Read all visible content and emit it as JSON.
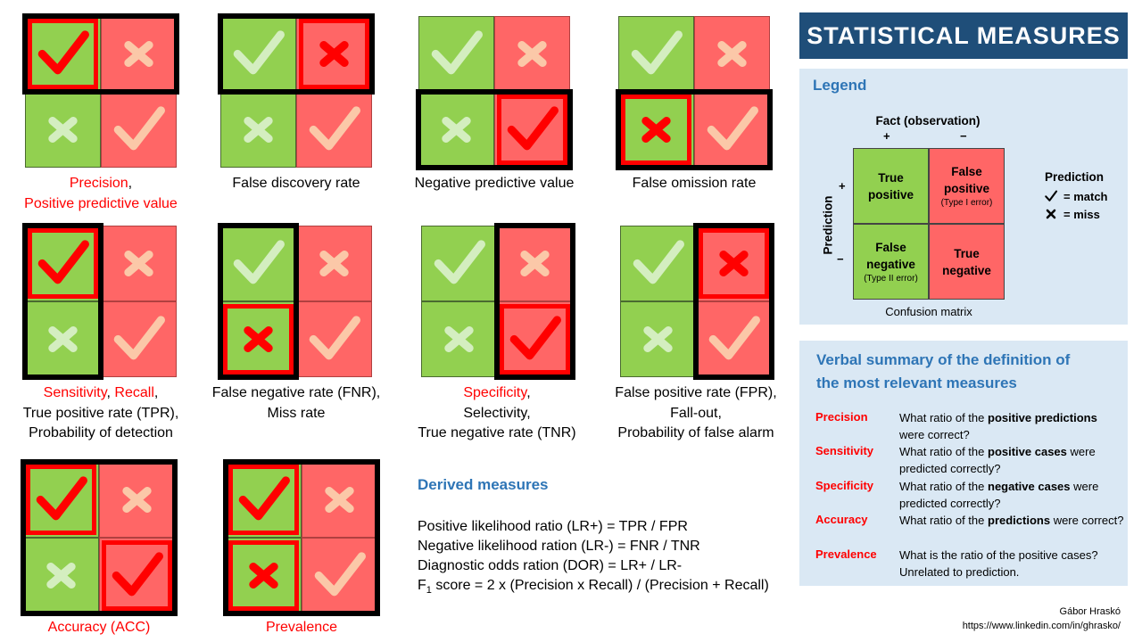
{
  "title": "STATISTICAL MEASURES",
  "colors": {
    "green": "#92d050",
    "red": "#ff6666",
    "highlight": "#ff0000",
    "title_bg": "#1f4e79",
    "panel_bg": "#dae8f4",
    "heading": "#2e75b6"
  },
  "icons": {
    "correct": "check-icon",
    "wrong": "cross-icon"
  },
  "measures": [
    {
      "caption_lines": [
        [
          {
            "t": "Precision",
            "red": true
          },
          {
            "t": ",",
            "red": false
          }
        ],
        [
          {
            "t": "Positive predictive value",
            "red": true
          }
        ]
      ]
    },
    {
      "caption_lines": [
        [
          {
            "t": "False discovery rate",
            "red": false
          }
        ]
      ]
    },
    {
      "caption_lines": [
        [
          {
            "t": "Negative predictive value",
            "red": false
          }
        ]
      ]
    },
    {
      "caption_lines": [
        [
          {
            "t": "False omission rate",
            "red": false
          }
        ]
      ]
    },
    {
      "caption_lines": [
        [
          {
            "t": "Sensitivity",
            "red": true
          },
          {
            "t": ", ",
            "red": false
          },
          {
            "t": "Recall",
            "red": true
          },
          {
            "t": ",",
            "red": false
          }
        ],
        [
          {
            "t": "True positive rate (TPR),",
            "red": false
          }
        ],
        [
          {
            "t": "Probability of detection",
            "red": false
          }
        ]
      ]
    },
    {
      "caption_lines": [
        [
          {
            "t": "False negative rate (FNR),",
            "red": false
          }
        ],
        [
          {
            "t": "Miss rate",
            "red": false
          }
        ]
      ]
    },
    {
      "caption_lines": [
        [
          {
            "t": "Specificity",
            "red": true
          },
          {
            "t": ",",
            "red": false
          }
        ],
        [
          {
            "t": "Selectivity,",
            "red": false
          }
        ],
        [
          {
            "t": "True negative rate (TNR)",
            "red": false
          }
        ]
      ]
    },
    {
      "caption_lines": [
        [
          {
            "t": "False positive rate (FPR),",
            "red": false
          }
        ],
        [
          {
            "t": "Fall-out,",
            "red": false
          }
        ],
        [
          {
            "t": "Probability of false alarm",
            "red": false
          }
        ]
      ]
    },
    {
      "caption_lines": [
        [
          {
            "t": "Accuracy (ACC)",
            "red": true
          }
        ]
      ]
    },
    {
      "caption_lines": [
        [
          {
            "t": "Prevalence",
            "red": true
          }
        ]
      ]
    }
  ],
  "derived": {
    "heading": "Derived measures",
    "lines": [
      "Positive likelihood ratio (LR+) = TPR / FPR",
      "Negative likelihood ration (LR-) = FNR / TNR",
      "Diagnostic odds ration (DOR) = LR+ / LR-"
    ],
    "f1_prefix": "F",
    "f1_sub": "1",
    "f1_rest": " score = 2 x (Precision x Recall) / (Precision + Recall)"
  },
  "legend": {
    "heading": "Legend",
    "fact_label": "Fact (observation)",
    "plus": "+",
    "minus": "−",
    "prediction_axis": "Prediction",
    "tp": {
      "line1": "True",
      "line2": "positive"
    },
    "fp": {
      "line1": "False",
      "line2": "positive",
      "sub": "(Type I error)"
    },
    "fn": {
      "line1": "False",
      "line2": "negative",
      "sub": "(Type II error)"
    },
    "tn": {
      "line1": "True",
      "line2": "negative"
    },
    "matrix_caption": "Confusion matrix",
    "key_title": "Prediction",
    "key_match": "= match",
    "key_miss": "= miss"
  },
  "verbal": {
    "heading_line1": "Verbal summary of the definition of",
    "heading_line2": "the most relevant measures",
    "items": [
      {
        "term": "Precision",
        "segs": [
          {
            "t": "What ratio of the ",
            "b": false
          },
          {
            "t": "positive predictions",
            "b": true
          },
          {
            "t": " were correct?",
            "b": false
          }
        ]
      },
      {
        "term": "Sensitivity",
        "segs": [
          {
            "t": "What ratio of the ",
            "b": false
          },
          {
            "t": "positive cases",
            "b": true
          },
          {
            "t": " were predicted correctly?",
            "b": false
          }
        ]
      },
      {
        "term": "Specificity",
        "segs": [
          {
            "t": "What ratio of the ",
            "b": false
          },
          {
            "t": "negative cases",
            "b": true
          },
          {
            "t": " were predicted correctly?",
            "b": false
          }
        ]
      },
      {
        "term": "Accuracy",
        "segs": [
          {
            "t": "What ratio of the ",
            "b": false
          },
          {
            "t": "predictions",
            "b": true
          },
          {
            "t": " were correct?",
            "b": false
          }
        ]
      },
      {
        "term": "Prevalence",
        "segs": [
          {
            "t": "What is the ratio of the positive cases? Unrelated to prediction.",
            "b": false
          }
        ]
      }
    ]
  },
  "author": "Gábor Hraskó",
  "url": "https://www.linkedin.com/in/ghrasko/"
}
